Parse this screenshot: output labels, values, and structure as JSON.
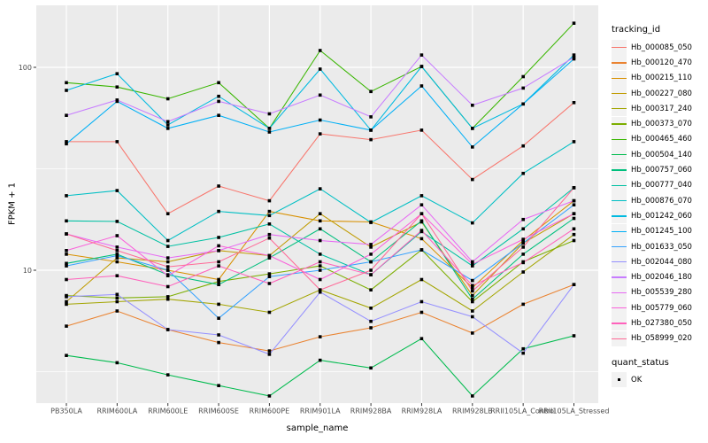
{
  "axes": {
    "x_title": "sample_name",
    "y_title": "FPKM + 1"
  },
  "legend": {
    "tracking_title": "tracking_id",
    "quant_title": "quant_status",
    "quant_items": [
      {
        "label": "OK"
      }
    ]
  },
  "chart_data": {
    "type": "line",
    "title": "",
    "xlabel": "sample_name",
    "ylabel": "FPKM + 1",
    "yscale": "log10",
    "ylim": [
      2.2,
      202
    ],
    "y_major_ticks": [
      100,
      10
    ],
    "y_minor_ticks": [
      31.62,
      3.162
    ],
    "grid": true,
    "legend_position": "right",
    "marker": "black-square",
    "panel_bg": "#EBEBEB",
    "grid_color": "#FFFFFF",
    "tick_color": "#333333",
    "tick_label_color": "#4D4D4D",
    "categories": [
      "PB350LA",
      "RRIM600LA",
      "RRIM600LE",
      "RRIM600SE",
      "RRIM600PE",
      "RRIM901LA",
      "RRIM928BA",
      "RRIM928LA",
      "RRIM928LB",
      "RRII105LA_Control",
      "RRII105LA_Stressed"
    ],
    "series": [
      {
        "name": "Hb_000085_050",
        "color": "#F8766D",
        "values": [
          43,
          43,
          19,
          26,
          22,
          47,
          44,
          49,
          28,
          41,
          67
        ]
      },
      {
        "name": "Hb_000120_470",
        "color": "#EA8331",
        "values": [
          5.3,
          6.3,
          5.1,
          4.4,
          4.0,
          4.7,
          5.2,
          6.2,
          4.9,
          6.8,
          8.5
        ]
      },
      {
        "name": "Hb_000215_110",
        "color": "#D89000",
        "values": [
          12,
          11,
          10,
          9,
          19.5,
          17.5,
          17.3,
          14.3,
          8.2,
          14,
          22
        ]
      },
      {
        "name": "Hb_000227_080",
        "color": "#C09B00",
        "values": [
          7.0,
          11.5,
          11.0,
          12.5,
          11.8,
          19,
          13,
          17.3,
          7.5,
          13.6,
          19
        ]
      },
      {
        "name": "Hb_000317_240",
        "color": "#A3A500",
        "values": [
          6.8,
          7.0,
          7.2,
          6.8,
          6.2,
          8.0,
          6.5,
          9.0,
          6.3,
          9.8,
          15
        ]
      },
      {
        "name": "Hb_000373_070",
        "color": "#7CAE00",
        "values": [
          7.5,
          7.3,
          7.4,
          8.8,
          9.6,
          10.5,
          8.0,
          12.6,
          7.0,
          11,
          14
        ]
      },
      {
        "name": "Hb_000465_460",
        "color": "#39B600",
        "values": [
          84,
          80,
          70,
          84,
          50,
          121,
          76,
          101,
          50,
          90,
          165
        ]
      },
      {
        "name": "Hb_000504_140",
        "color": "#00BB4E",
        "values": [
          3.8,
          3.5,
          3.05,
          2.7,
          2.4,
          3.6,
          3.3,
          4.6,
          2.4,
          4.1,
          4.75
        ]
      },
      {
        "name": "Hb_000757_060",
        "color": "#00BF7D",
        "values": [
          10.8,
          12,
          9.5,
          8.5,
          11.5,
          16,
          11,
          17.5,
          7.2,
          12,
          18
        ]
      },
      {
        "name": "Hb_000777_040",
        "color": "#00C1A3",
        "values": [
          17.5,
          17.4,
          13.1,
          14.5,
          16.9,
          12,
          9.5,
          15.5,
          10.5,
          16,
          25.5
        ]
      },
      {
        "name": "Hb_000876_070",
        "color": "#00BFC4",
        "values": [
          23.3,
          24.7,
          14,
          19.5,
          18.6,
          25.2,
          17.2,
          23.3,
          17.1,
          30,
          43
        ]
      },
      {
        "name": "Hb_001242_060",
        "color": "#00BAE0",
        "values": [
          77,
          93,
          52,
          72,
          50,
          98,
          49,
          101,
          50,
          66,
          115
        ]
      },
      {
        "name": "Hb_001245_100",
        "color": "#00B0F6",
        "values": [
          42,
          68,
          50,
          58,
          48,
          55,
          49,
          81,
          40.5,
          66,
          110
        ]
      },
      {
        "name": "Hb_001633_050",
        "color": "#35A2FF",
        "values": [
          10.5,
          11.8,
          10,
          5.8,
          9.3,
          10,
          11,
          12.6,
          8.9,
          13.6,
          21
        ]
      },
      {
        "name": "Hb_002044_080",
        "color": "#9590FF",
        "values": [
          7.4,
          7.6,
          5.1,
          4.8,
          3.85,
          7.8,
          5.6,
          7.0,
          5.9,
          3.9,
          8.5
        ]
      },
      {
        "name": "Hb_002046_180",
        "color": "#C77CFF",
        "values": [
          58,
          69,
          54,
          68,
          59,
          73,
          57,
          115,
          65,
          79,
          112
        ]
      },
      {
        "name": "Hb_005539_280",
        "color": "#E76BF3",
        "values": [
          15.1,
          13,
          11.5,
          12.5,
          15,
          14,
          13.4,
          21,
          11,
          17.8,
          22
        ]
      },
      {
        "name": "Hb_005779_060",
        "color": "#FA62DB",
        "values": [
          12.5,
          14.8,
          9.4,
          13.2,
          11.8,
          9.0,
          12.0,
          19,
          10.7,
          14.2,
          19
        ]
      },
      {
        "name": "Hb_027380_050",
        "color": "#FF62BC",
        "values": [
          9.0,
          9.4,
          8.3,
          10.5,
          8.6,
          11,
          9.5,
          15.7,
          8.4,
          10.9,
          16
        ]
      },
      {
        "name": "Hb_058999_020",
        "color": "#FF6A98",
        "values": [
          15.1,
          12.5,
          10.4,
          11,
          14.4,
          8.0,
          10,
          19,
          7.9,
          13,
          25.5
        ]
      }
    ]
  }
}
